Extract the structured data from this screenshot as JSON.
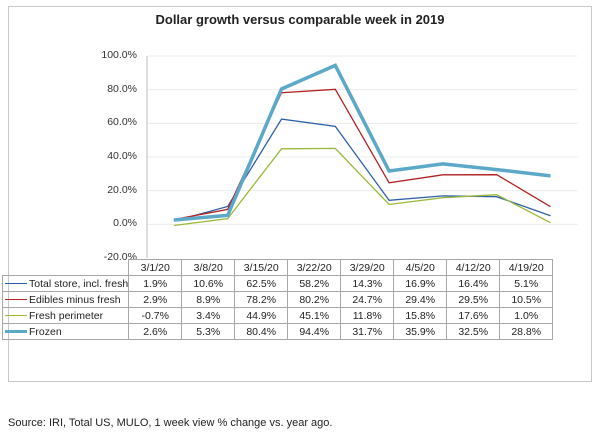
{
  "source_note": "Source: IRI, Total US, MULO, 1 week view % change vs. year ago.",
  "chart_data": {
    "type": "line",
    "title": "Dollar growth versus comparable week in 2019",
    "xlabel": "",
    "ylabel": "",
    "ylim": [
      -20,
      100
    ],
    "yticks": [
      100,
      80,
      60,
      40,
      20,
      0,
      -20
    ],
    "ytick_labels": [
      "100.0%",
      "80.0%",
      "60.0%",
      "40.0%",
      "20.0%",
      "0.0%",
      "-20.0%"
    ],
    "grid": true,
    "legend": "data-table-below",
    "categories": [
      "3/1/20",
      "3/8/20",
      "3/15/20",
      "3/22/20",
      "3/29/20",
      "4/5/20",
      "4/12/20",
      "4/19/20"
    ],
    "series": [
      {
        "name": "Total store, incl. fresh",
        "color": "#2e5fa8",
        "values": [
          1.9,
          10.6,
          62.5,
          58.2,
          14.3,
          16.9,
          16.4,
          5.1
        ],
        "labels": [
          "1.9%",
          "10.6%",
          "62.5%",
          "58.2%",
          "14.3%",
          "16.9%",
          "16.4%",
          "5.1%"
        ]
      },
      {
        "name": "Edibles minus fresh",
        "color": "#b22222",
        "values": [
          2.9,
          8.9,
          78.2,
          80.2,
          24.7,
          29.4,
          29.5,
          10.5
        ],
        "labels": [
          "2.9%",
          "8.9%",
          "78.2%",
          "80.2%",
          "24.7%",
          "29.4%",
          "29.5%",
          "10.5%"
        ]
      },
      {
        "name": "Fresh perimeter",
        "color": "#9ab93a",
        "values": [
          -0.7,
          3.4,
          44.9,
          45.1,
          11.8,
          15.8,
          17.6,
          1.0
        ],
        "labels": [
          "-0.7%",
          "3.4%",
          "44.9%",
          "45.1%",
          "11.8%",
          "15.8%",
          "17.6%",
          "1.0%"
        ]
      },
      {
        "name": "Frozen",
        "color": "#5ba8c8",
        "values": [
          2.6,
          5.3,
          80.4,
          94.4,
          31.7,
          35.9,
          32.5,
          28.8
        ],
        "labels": [
          "2.6%",
          "5.3%",
          "80.4%",
          "94.4%",
          "31.7%",
          "35.9%",
          "32.5%",
          "28.8%"
        ]
      }
    ]
  }
}
